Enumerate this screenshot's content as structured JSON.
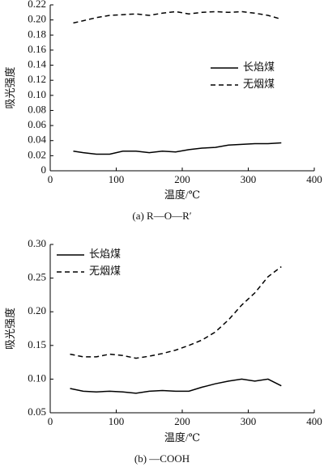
{
  "chart_data": [
    {
      "type": "line",
      "caption": "(a)  R—O—R′",
      "xlabel": "温度/℃",
      "ylabel": "吸光强度",
      "x": [
        35,
        50,
        70,
        90,
        110,
        130,
        150,
        170,
        190,
        210,
        230,
        250,
        270,
        290,
        310,
        330,
        350
      ],
      "series": [
        {
          "name": "长焰煤",
          "color": "#000000",
          "style": "solid",
          "values": [
            0.026,
            0.024,
            0.022,
            0.022,
            0.026,
            0.026,
            0.024,
            0.026,
            0.025,
            0.028,
            0.03,
            0.031,
            0.034,
            0.035,
            0.036,
            0.036,
            0.037
          ]
        },
        {
          "name": "无烟煤",
          "color": "#000000",
          "style": "dashed",
          "values": [
            0.196,
            0.199,
            0.203,
            0.206,
            0.207,
            0.208,
            0.206,
            0.209,
            0.211,
            0.208,
            0.21,
            0.211,
            0.21,
            0.211,
            0.209,
            0.206,
            0.201
          ]
        }
      ],
      "xlim": [
        0,
        400
      ],
      "xticks": [
        0,
        100,
        200,
        300,
        400
      ],
      "ylim": [
        0,
        0.22
      ],
      "yticks": [
        0,
        0.02,
        0.04,
        0.06,
        0.08,
        {
          "value": 0.1,
          "label": "0.10"
        },
        0.12,
        0.14,
        0.16,
        0.18,
        {
          "value": 0.2,
          "label": "0.20"
        },
        0.22
      ],
      "legend": "center right"
    },
    {
      "type": "line",
      "caption": "(b)  —COOH",
      "xlabel": "温度/℃",
      "ylabel": "吸光强度",
      "x": [
        30,
        50,
        70,
        90,
        110,
        130,
        150,
        170,
        190,
        210,
        230,
        250,
        270,
        290,
        310,
        330,
        350
      ],
      "series": [
        {
          "name": "长焰煤",
          "color": "#000000",
          "style": "solid",
          "values": [
            0.086,
            0.082,
            0.081,
            0.082,
            0.081,
            0.079,
            0.082,
            0.083,
            0.082,
            0.082,
            0.088,
            0.093,
            0.097,
            0.1,
            0.097,
            0.1,
            0.09
          ]
        },
        {
          "name": "无烟煤",
          "color": "#000000",
          "style": "dashed",
          "values": [
            0.137,
            0.133,
            0.133,
            0.137,
            0.135,
            0.131,
            0.134,
            0.138,
            0.143,
            0.15,
            0.158,
            0.17,
            0.188,
            0.21,
            0.228,
            0.252,
            0.267
          ]
        }
      ],
      "xlim": [
        0,
        400
      ],
      "xticks": [
        0,
        100,
        200,
        300,
        400
      ],
      "ylim": [
        0.05,
        0.3
      ],
      "yticks": [
        0.05,
        {
          "value": 0.1,
          "label": "0.10"
        },
        0.15,
        {
          "value": 0.2,
          "label": "0.20"
        },
        0.25,
        {
          "value": 0.3,
          "label": "0.30"
        }
      ],
      "legend": "upper left"
    }
  ]
}
